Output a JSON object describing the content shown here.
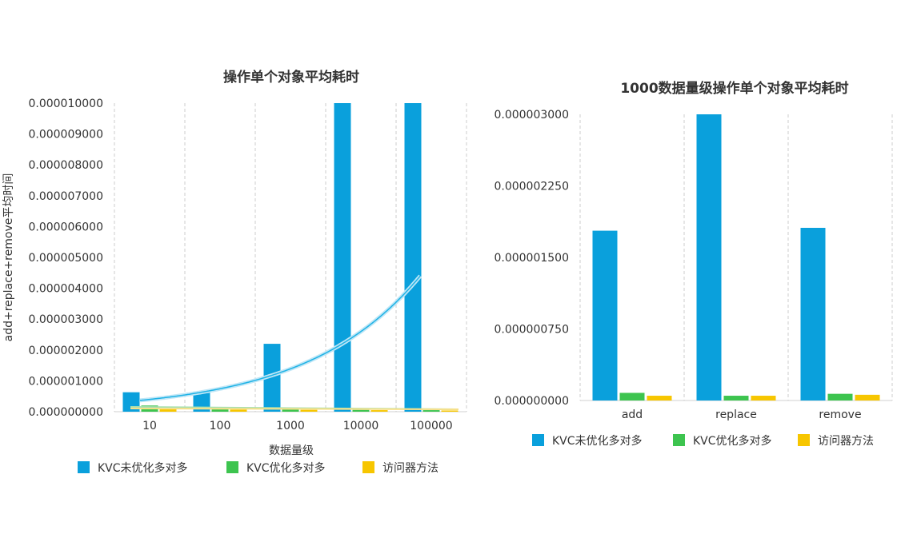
{
  "colors": {
    "kvc_unopt": "#0aa0dc",
    "kvc_opt": "#3dc44f",
    "accessor": "#f7c600",
    "trend": "#1fb3e6"
  },
  "chart_data": [
    {
      "type": "bar",
      "title": "操作单个对象平均耗时",
      "xlabel": "数据量级",
      "ylabel": "add+replace+remove平均时间",
      "categories": [
        "10",
        "100",
        "1000",
        "10000",
        "100000"
      ],
      "ylim": [
        0,
        1e-05
      ],
      "yticks": [
        "0.000000000",
        "0.000001000",
        "0.000002000",
        "0.000003000",
        "0.000004000",
        "0.000005000",
        "0.000006000",
        "0.000007000",
        "0.000008000",
        "0.000009000",
        "0.000010000"
      ],
      "legend_position": "bottom",
      "grid": "vertical-dashed",
      "series": [
        {
          "name": "KVC未优化多对多",
          "color": "#0aa0dc",
          "values": [
            6.3e-07,
            6.5e-07,
            2.2e-06,
            1e-05,
            1e-05
          ]
        },
        {
          "name": "KVC优化多对多",
          "color": "#3dc44f",
          "values": [
            2e-07,
            8e-08,
            8e-08,
            6e-08,
            5e-08
          ]
        },
        {
          "name": "访问器方法",
          "color": "#f7c600",
          "values": [
            9e-08,
            7e-08,
            6e-08,
            5e-08,
            4e-08
          ]
        }
      ],
      "trendline": {
        "type": "exponential",
        "series": "KVC未优化多对多"
      }
    },
    {
      "type": "bar",
      "title": "1000数据量级操作单个对象平均耗时",
      "categories": [
        "add",
        "replace",
        "remove"
      ],
      "ylim": [
        0,
        3e-06
      ],
      "yticks": [
        "0.000000000",
        "0.000000750",
        "0.000001500",
        "0.000002250",
        "0.000003000"
      ],
      "legend_position": "bottom",
      "grid": "vertical-dashed",
      "series": [
        {
          "name": "KVC未优化多对多",
          "color": "#0aa0dc",
          "values": [
            1.78e-06,
            3e-06,
            1.81e-06
          ]
        },
        {
          "name": "KVC优化多对多",
          "color": "#3dc44f",
          "values": [
            8e-08,
            5e-08,
            7e-08
          ]
        },
        {
          "name": "访问器方法",
          "color": "#f7c600",
          "values": [
            5e-08,
            5e-08,
            6e-08
          ]
        }
      ]
    }
  ]
}
